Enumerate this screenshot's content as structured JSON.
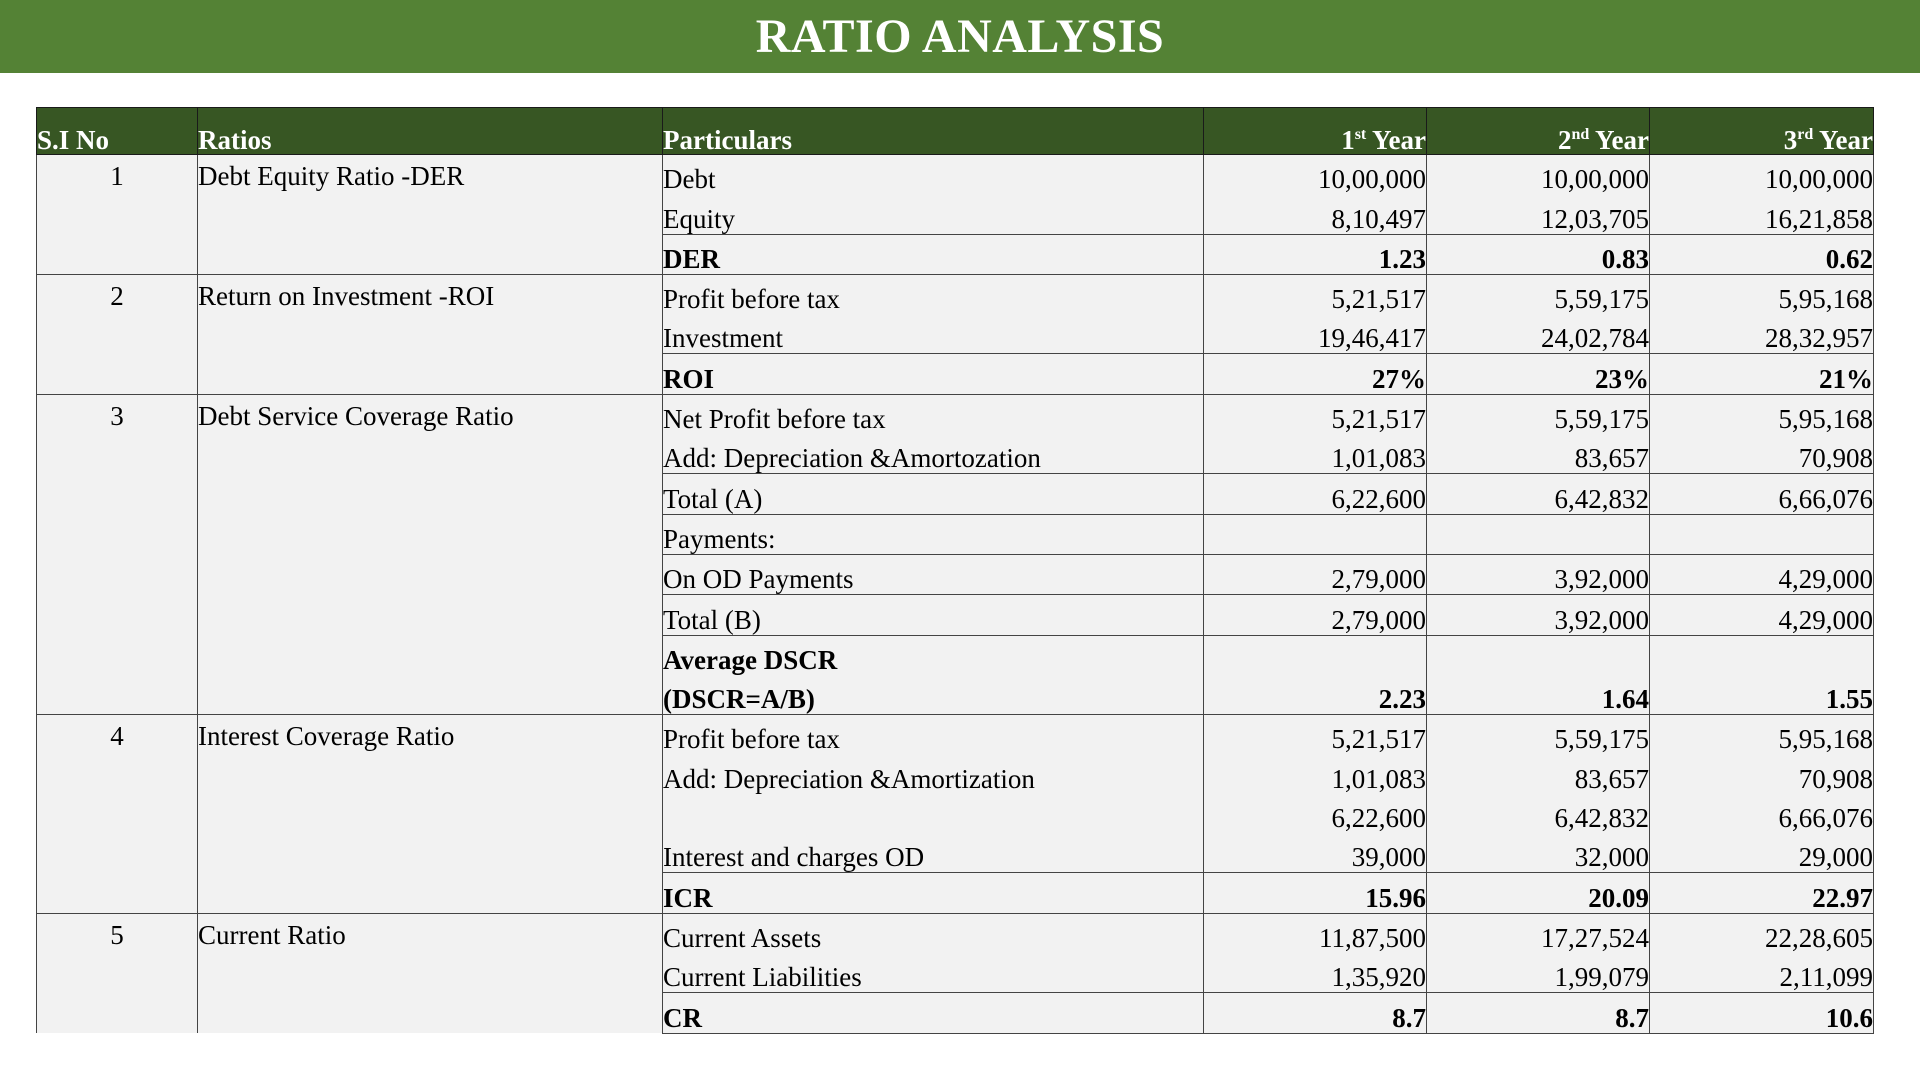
{
  "title": "RATIO ANALYSIS",
  "headers": {
    "sino": "S.I No",
    "ratios": "Ratios",
    "particulars": "Particulars",
    "y1_num": "1",
    "y1_sup": "st",
    "y1_word": " Year",
    "y2_num": "2",
    "y2_sup": "nd",
    "y2_word": " Year",
    "y3_num": "3",
    "y3_sup": "rd",
    "y3_word": " Year"
  },
  "groups": [
    {
      "sino": "1",
      "ratio": "Debt Equity Ratio -DER",
      "rows": [
        {
          "label": "Debt",
          "v": [
            "10,00,000",
            "10,00,000",
            "10,00,000"
          ]
        },
        {
          "label": "Equity",
          "v": [
            "8,10,497",
            "12,03,705",
            "16,21,858"
          ]
        },
        {
          "label": "DER",
          "v": [
            "1.23",
            "0.83",
            "0.62"
          ]
        }
      ]
    },
    {
      "sino": "2",
      "ratio": "Return on Investment -ROI",
      "rows": [
        {
          "label": "Profit before tax",
          "v": [
            "5,21,517",
            "5,59,175",
            "5,95,168"
          ]
        },
        {
          "label": "Investment",
          "v": [
            "19,46,417",
            "24,02,784",
            "28,32,957"
          ]
        },
        {
          "label": "ROI",
          "v": [
            "27%",
            "23%",
            "21%"
          ]
        }
      ]
    },
    {
      "sino": "3",
      "ratio": "Debt Service Coverage Ratio",
      "rows": [
        {
          "label": "Net Profit before tax",
          "v": [
            "5,21,517",
            "5,59,175",
            "5,95,168"
          ]
        },
        {
          "label": "Add: Depreciation &Amortozation",
          "v": [
            "1,01,083",
            "83,657",
            "70,908"
          ]
        },
        {
          "label": "Total (A)",
          "v": [
            "6,22,600",
            "6,42,832",
            "6,66,076"
          ]
        },
        {
          "label": "Payments:",
          "v": [
            "",
            "",
            ""
          ]
        },
        {
          "label": "On OD Payments",
          "v": [
            "2,79,000",
            "3,92,000",
            "4,29,000"
          ]
        },
        {
          "label": "Total (B)",
          "v": [
            "2,79,000",
            "3,92,000",
            "4,29,000"
          ]
        },
        {
          "label": "Average DSCR",
          "v": [
            "",
            "",
            ""
          ]
        },
        {
          "label": "(DSCR=A/B)",
          "v": [
            "2.23",
            "1.64",
            "1.55"
          ]
        }
      ]
    },
    {
      "sino": "4",
      "ratio": "Interest Coverage Ratio",
      "rows": [
        {
          "label": "Profit before tax",
          "v": [
            "5,21,517",
            "5,59,175",
            "5,95,168"
          ]
        },
        {
          "label": "Add: Depreciation &Amortization",
          "v": [
            "1,01,083",
            "83,657",
            "70,908"
          ]
        },
        {
          "label": "",
          "v": [
            "6,22,600",
            "6,42,832",
            "6,66,076"
          ]
        },
        {
          "label": "Interest and charges OD",
          "v": [
            "39,000",
            "32,000",
            "29,000"
          ]
        },
        {
          "label": "ICR",
          "v": [
            "15.96",
            "20.09",
            "22.97"
          ]
        }
      ]
    },
    {
      "sino": "5",
      "ratio": "Current Ratio",
      "rows": [
        {
          "label": "Current Assets",
          "v": [
            "11,87,500",
            "17,27,524",
            "22,28,605"
          ]
        },
        {
          "label": "Current Liabilities",
          "v": [
            "1,35,920",
            "1,99,079",
            "2,11,099"
          ]
        },
        {
          "label": "CR",
          "v": [
            "8.7",
            "8.7",
            "10.6"
          ]
        }
      ]
    }
  ]
}
